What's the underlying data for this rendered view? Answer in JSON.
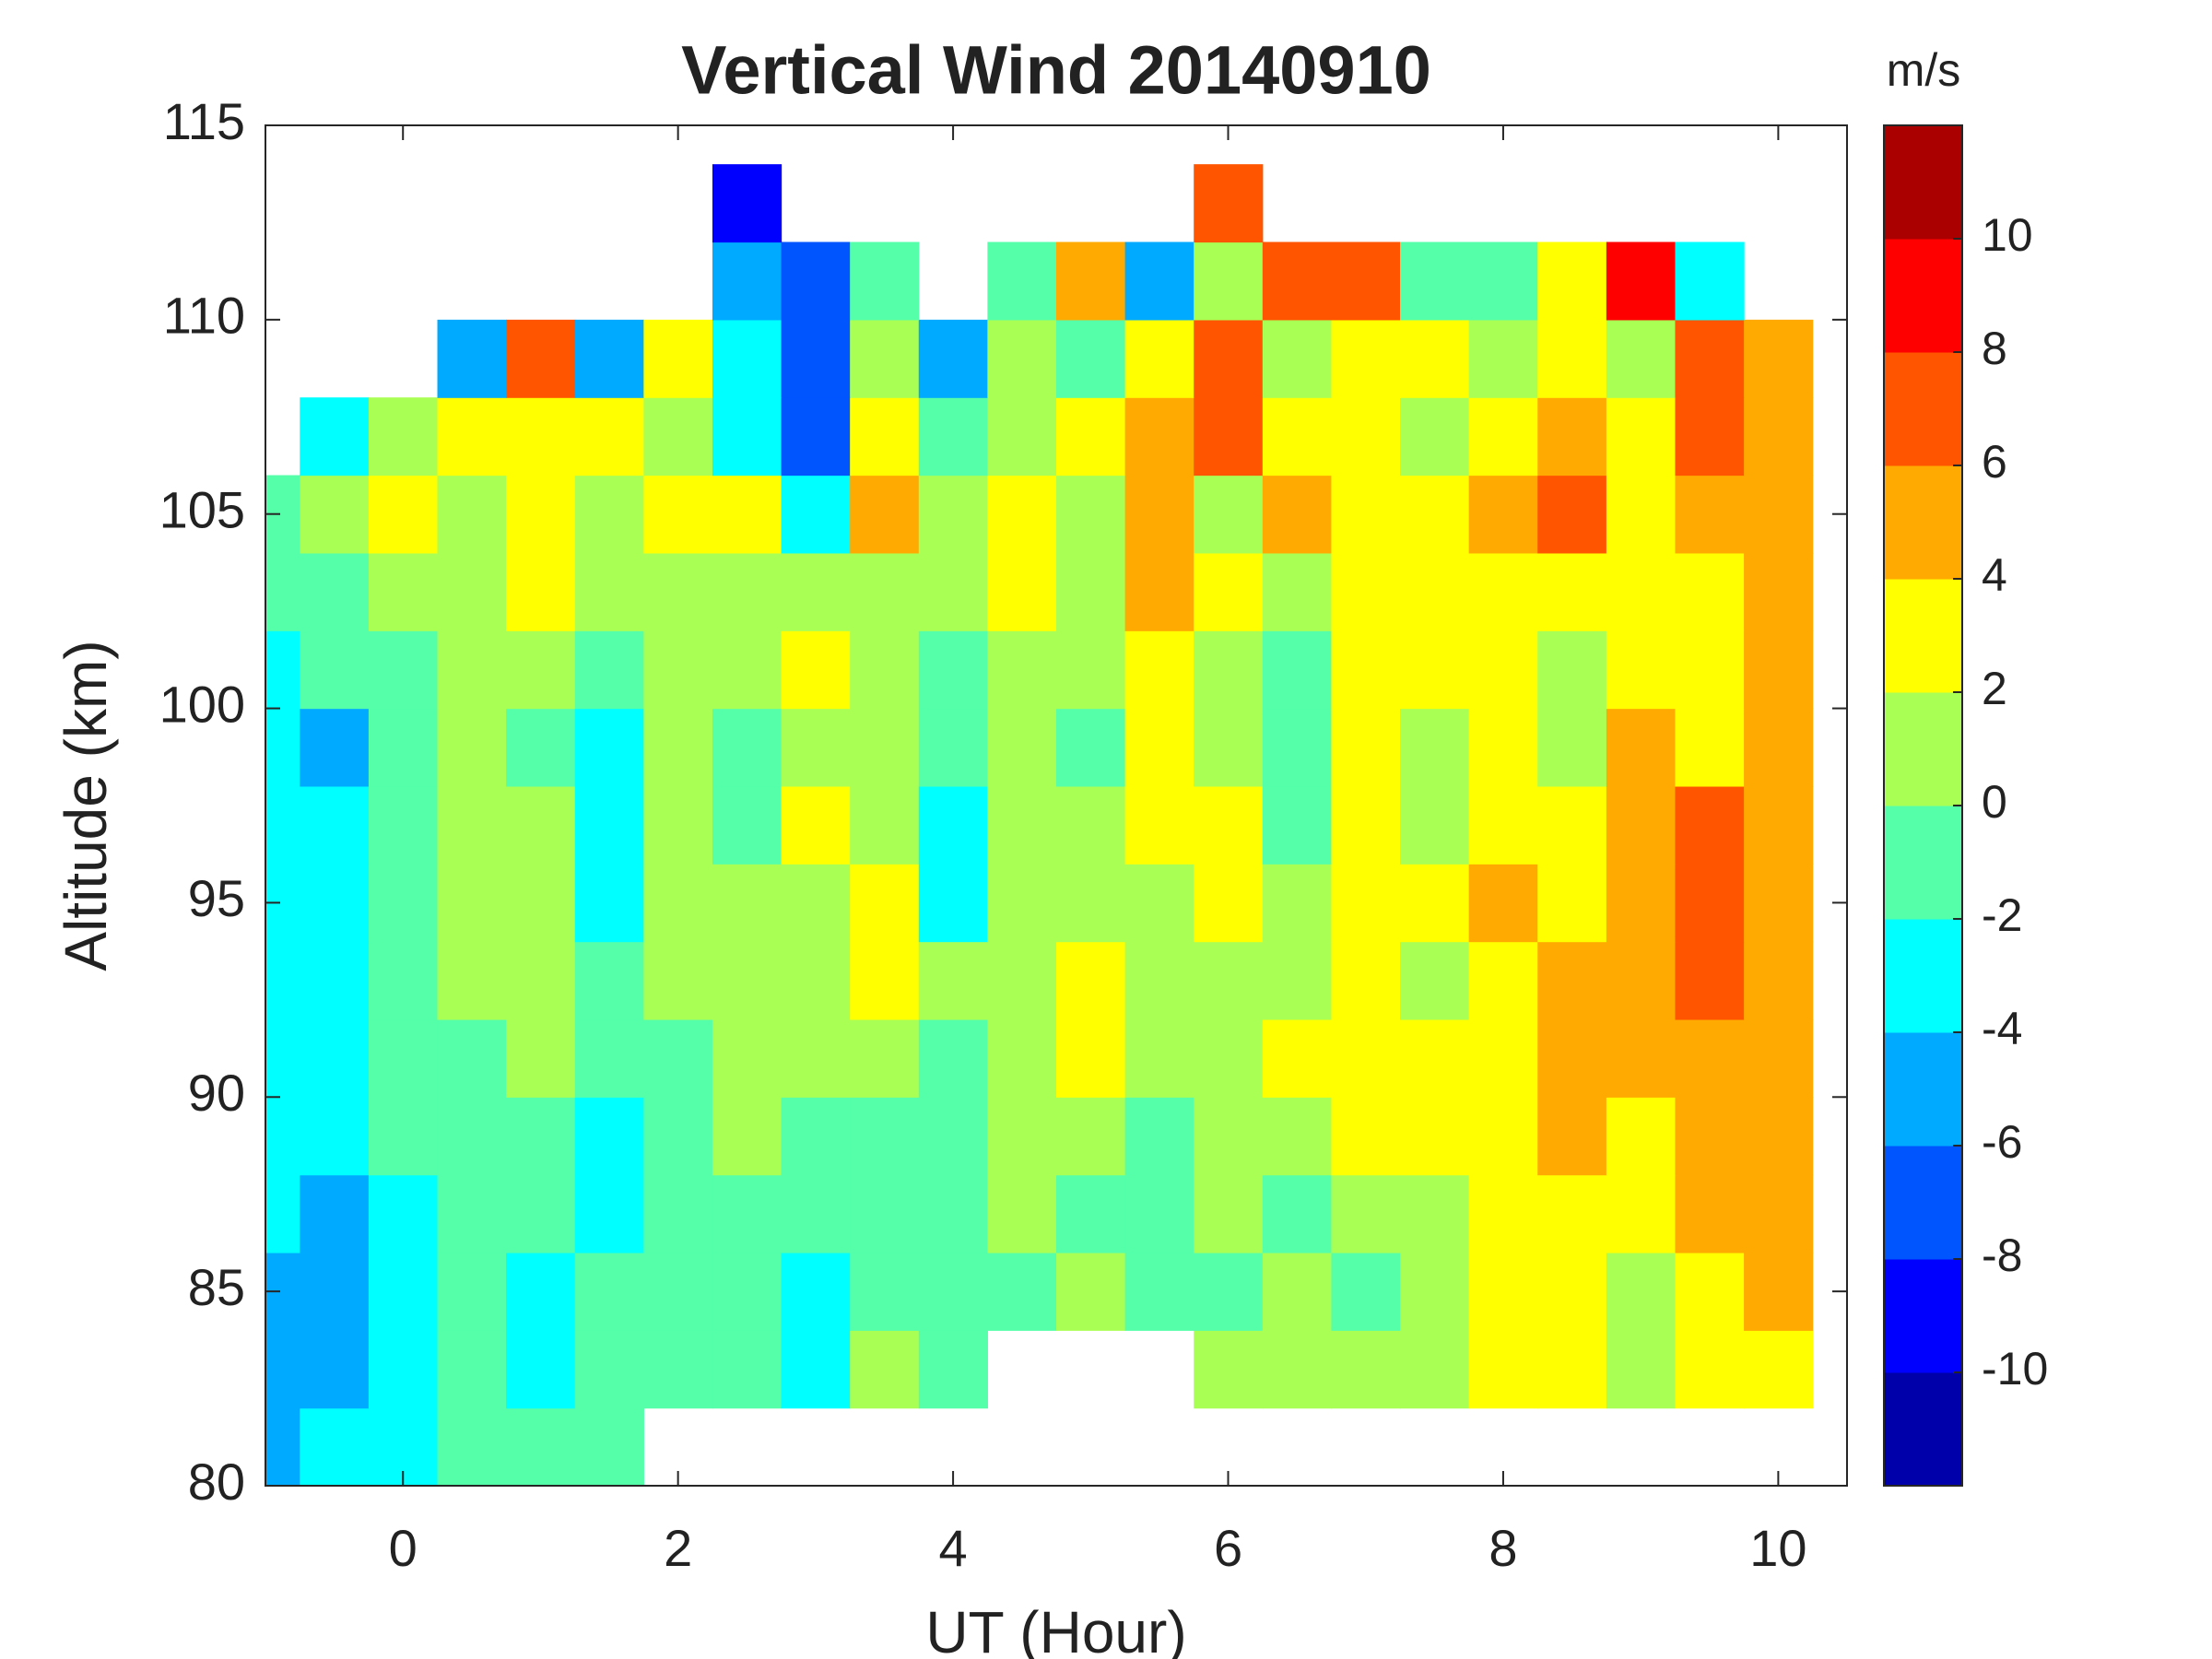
{
  "chart_data": {
    "type": "contour",
    "title": "Vertical Wind 20140910",
    "x_label": "UT (Hour)",
    "y_label": "Altitude (km)",
    "colorbar_label": "m/s",
    "xlim": [
      -1,
      10.5
    ],
    "ylim": [
      80,
      115
    ],
    "xticks": [
      0,
      2,
      4,
      6,
      8,
      10
    ],
    "yticks": [
      80,
      85,
      90,
      95,
      100,
      105,
      110,
      115
    ],
    "x_step": 0.5,
    "y_step": 2,
    "x": [
      -1,
      -0.5,
      0,
      0.5,
      1,
      1.5,
      2,
      2.5,
      3,
      3.5,
      4,
      4.5,
      5,
      5.5,
      6,
      6.5,
      7,
      7.5,
      8,
      8.5,
      9,
      9.5,
      10
    ],
    "y": [
      81,
      83,
      85,
      87,
      89,
      91,
      93,
      95,
      97,
      99,
      101,
      103,
      105,
      107,
      109,
      111,
      113
    ],
    "z": [
      [
        -5,
        -4,
        -3,
        -1,
        -1,
        -1,
        null,
        null,
        null,
        null,
        null,
        null,
        null,
        null,
        null,
        null,
        null,
        null,
        null,
        null,
        null,
        null,
        null
      ],
      [
        -5,
        -5,
        -3,
        -1,
        -3,
        -1,
        -1,
        -1,
        -3,
        1,
        -1,
        null,
        null,
        null,
        1,
        1,
        1,
        1,
        3,
        3,
        1,
        3,
        3
      ],
      [
        -5,
        -5,
        -3,
        -1,
        -3,
        -1,
        -1,
        -1,
        -3,
        -1,
        -1,
        -1,
        1,
        -1,
        -1,
        1,
        -1,
        1,
        3,
        3,
        1,
        3,
        5
      ],
      [
        -3,
        -5,
        -3,
        -1,
        -1,
        -3,
        -1,
        -1,
        -1,
        -1,
        -1,
        1,
        -1,
        -1,
        1,
        -1,
        1,
        1,
        3,
        3,
        3,
        5,
        5
      ],
      [
        -3,
        -3,
        -1,
        -1,
        -1,
        -3,
        -1,
        1,
        -1,
        -1,
        -1,
        1,
        1,
        -1,
        1,
        1,
        3,
        3,
        3,
        5,
        3,
        5,
        5
      ],
      [
        -3,
        -3,
        -1,
        -1,
        1,
        -1,
        -1,
        1,
        1,
        1,
        -1,
        1,
        3,
        1,
        1,
        3,
        3,
        3,
        3,
        5,
        5,
        5,
        5
      ],
      [
        -3,
        -3,
        -1,
        1,
        1,
        -1,
        1,
        1,
        1,
        3,
        1,
        1,
        3,
        1,
        1,
        1,
        3,
        1,
        3,
        5,
        5,
        7,
        5
      ],
      [
        -3,
        -3,
        -1,
        1,
        1,
        -3,
        1,
        1,
        1,
        3,
        -3,
        1,
        1,
        1,
        3,
        1,
        3,
        3,
        5,
        3,
        5,
        7,
        5
      ],
      [
        -3,
        -3,
        -1,
        1,
        1,
        -3,
        1,
        -1,
        3,
        1,
        -3,
        1,
        1,
        3,
        3,
        -1,
        3,
        1,
        3,
        3,
        5,
        7,
        5
      ],
      [
        -3,
        -5,
        -1,
        1,
        -1,
        -3,
        1,
        -1,
        1,
        1,
        -1,
        1,
        -1,
        3,
        1,
        -1,
        3,
        1,
        3,
        1,
        5,
        3,
        5
      ],
      [
        -3,
        -1,
        -1,
        1,
        1,
        -1,
        1,
        1,
        3,
        1,
        -1,
        1,
        1,
        3,
        1,
        -1,
        3,
        3,
        3,
        1,
        3,
        3,
        5
      ],
      [
        -1,
        -1,
        1,
        1,
        3,
        1,
        1,
        1,
        1,
        1,
        1,
        3,
        1,
        5,
        3,
        1,
        3,
        3,
        3,
        3,
        3,
        3,
        5
      ],
      [
        -1,
        1,
        3,
        1,
        3,
        1,
        3,
        3,
        -3,
        5,
        1,
        3,
        1,
        5,
        1,
        5,
        3,
        3,
        5,
        7,
        3,
        5,
        5
      ],
      [
        null,
        -3,
        1,
        3,
        3,
        3,
        1,
        -3,
        -7,
        3,
        -1,
        1,
        3,
        5,
        7,
        3,
        3,
        1,
        3,
        5,
        3,
        7,
        5
      ],
      [
        null,
        null,
        null,
        -5,
        7,
        -5,
        3,
        -3,
        -7,
        1,
        -5,
        1,
        -1,
        3,
        7,
        1,
        3,
        3,
        1,
        3,
        1,
        7,
        5
      ],
      [
        null,
        null,
        null,
        null,
        null,
        null,
        null,
        -5,
        -7,
        -1,
        null,
        -1,
        5,
        -5,
        1,
        7,
        7,
        -1,
        -1,
        3,
        9,
        -3,
        null
      ],
      [
        null,
        null,
        null,
        null,
        null,
        null,
        null,
        -9,
        null,
        null,
        null,
        null,
        null,
        null,
        7,
        null,
        null,
        null,
        null,
        null,
        null,
        null,
        null
      ]
    ],
    "levels": [
      -12,
      -10,
      -8,
      -6,
      -4,
      -2,
      0,
      2,
      4,
      6,
      8,
      10,
      12
    ],
    "colors": [
      "#0000aa",
      "#0000ff",
      "#0055ff",
      "#00aaff",
      "#00ffff",
      "#55ffaa",
      "#aaff55",
      "#ffff00",
      "#ffaa00",
      "#ff5500",
      "#ff0000",
      "#aa0000"
    ],
    "colorbar_ticks": [
      -10,
      -8,
      -6,
      -4,
      -2,
      0,
      2,
      4,
      6,
      8,
      10
    ]
  }
}
